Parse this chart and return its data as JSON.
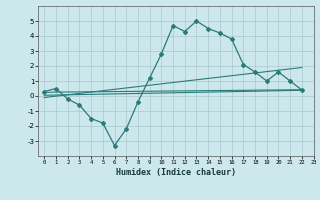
{
  "x_curve": [
    0,
    1,
    2,
    3,
    4,
    5,
    6,
    7,
    8,
    9,
    10,
    11,
    12,
    13,
    14,
    15,
    16,
    17,
    18,
    19,
    20,
    21,
    22
  ],
  "y_curve": [
    0.3,
    0.5,
    -0.2,
    -0.6,
    -1.5,
    -1.8,
    -3.3,
    -2.2,
    -0.4,
    1.2,
    2.8,
    4.7,
    4.3,
    5.0,
    4.5,
    4.2,
    3.8,
    2.1,
    1.6,
    1.0,
    1.6,
    1.0,
    0.4
  ],
  "line1_x": [
    0,
    22
  ],
  "line1_y": [
    0.25,
    0.42
  ],
  "line2_x": [
    0,
    22
  ],
  "line2_y": [
    -0.1,
    1.9
  ],
  "line3_x": [
    0,
    22
  ],
  "line3_y": [
    0.05,
    0.38
  ],
  "color": "#2a7b7b",
  "bg_color": "#cde8ec",
  "grid_color": "#aac8cc",
  "xlabel": "Humidex (Indice chaleur)",
  "ylim": [
    -4,
    6
  ],
  "xlim": [
    -0.5,
    23
  ],
  "yticks": [
    -3,
    -2,
    -1,
    0,
    1,
    2,
    3,
    4,
    5
  ],
  "xticks": [
    0,
    1,
    2,
    3,
    4,
    5,
    6,
    7,
    8,
    9,
    10,
    11,
    12,
    13,
    14,
    15,
    16,
    17,
    18,
    19,
    20,
    21,
    22,
    23
  ]
}
